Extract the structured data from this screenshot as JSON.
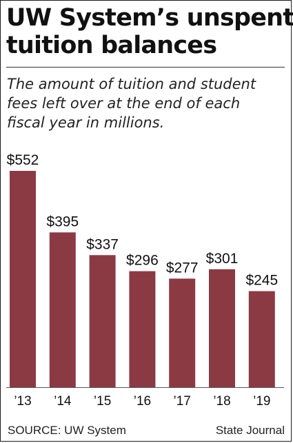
{
  "title_lines": [
    "UW System’s unspent",
    "tuition balances"
  ],
  "subtitle_lines": [
    "The amount of tuition and student",
    "fees left over at the end of each",
    "fiscal year in millions."
  ],
  "source": "SOURCE: UW System",
  "credit": "State Journal",
  "colors": {
    "bar": "#8b3a43",
    "axis": "#555555",
    "text": "#111111"
  },
  "chart_data": {
    "type": "bar",
    "title": "UW System’s unspent tuition balances",
    "subtitle": "The amount of tuition and student fees left over at the end of each fiscal year in millions.",
    "categories": [
      "’13",
      "’14",
      "’15",
      "’16",
      "’17",
      "’18",
      "’19"
    ],
    "values": [
      552,
      395,
      337,
      296,
      277,
      301,
      245
    ],
    "data_labels": [
      "$552",
      "$395",
      "$337",
      "$296",
      "$277",
      "$301",
      "$245"
    ],
    "xlabel": "",
    "ylabel": "",
    "ylim": [
      0,
      552
    ],
    "grid": false,
    "legend": "none"
  }
}
